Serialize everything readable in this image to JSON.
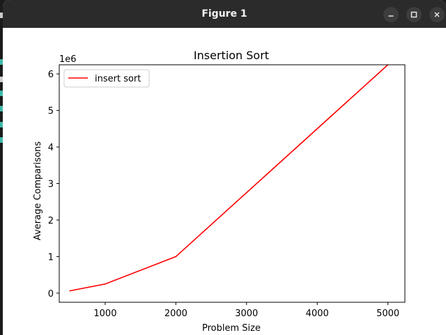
{
  "window": {
    "title": "Figure 1",
    "minimize_icon": "minimize-icon",
    "maximize_icon": "maximize-icon",
    "close_icon": "close-icon"
  },
  "colors": {
    "line": "#ff0000",
    "titlebar": "#2b2b2b"
  },
  "chart_data": {
    "type": "line",
    "title": "Insertion Sort",
    "xlabel": "Problem Size",
    "ylabel": "Average Comparisons",
    "y_offset_label": "1e6",
    "x": [
      500,
      1000,
      2000,
      5000
    ],
    "series": [
      {
        "name": "insert sort",
        "values": [
          62500,
          250000,
          1000000,
          6250000
        ]
      }
    ],
    "xlim": [
      350,
      5240
    ],
    "ylim": [
      -250000,
      6250000
    ],
    "xticks": [
      1000,
      2000,
      3000,
      4000,
      5000
    ],
    "xtick_labels": [
      "1000",
      "2000",
      "3000",
      "4000",
      "5000"
    ],
    "yticks": [
      0,
      1000000,
      2000000,
      3000000,
      4000000,
      5000000,
      6000000
    ],
    "ytick_labels": [
      "0",
      "1",
      "2",
      "3",
      "4",
      "5",
      "6"
    ],
    "legend": "upper-left",
    "grid": false
  }
}
